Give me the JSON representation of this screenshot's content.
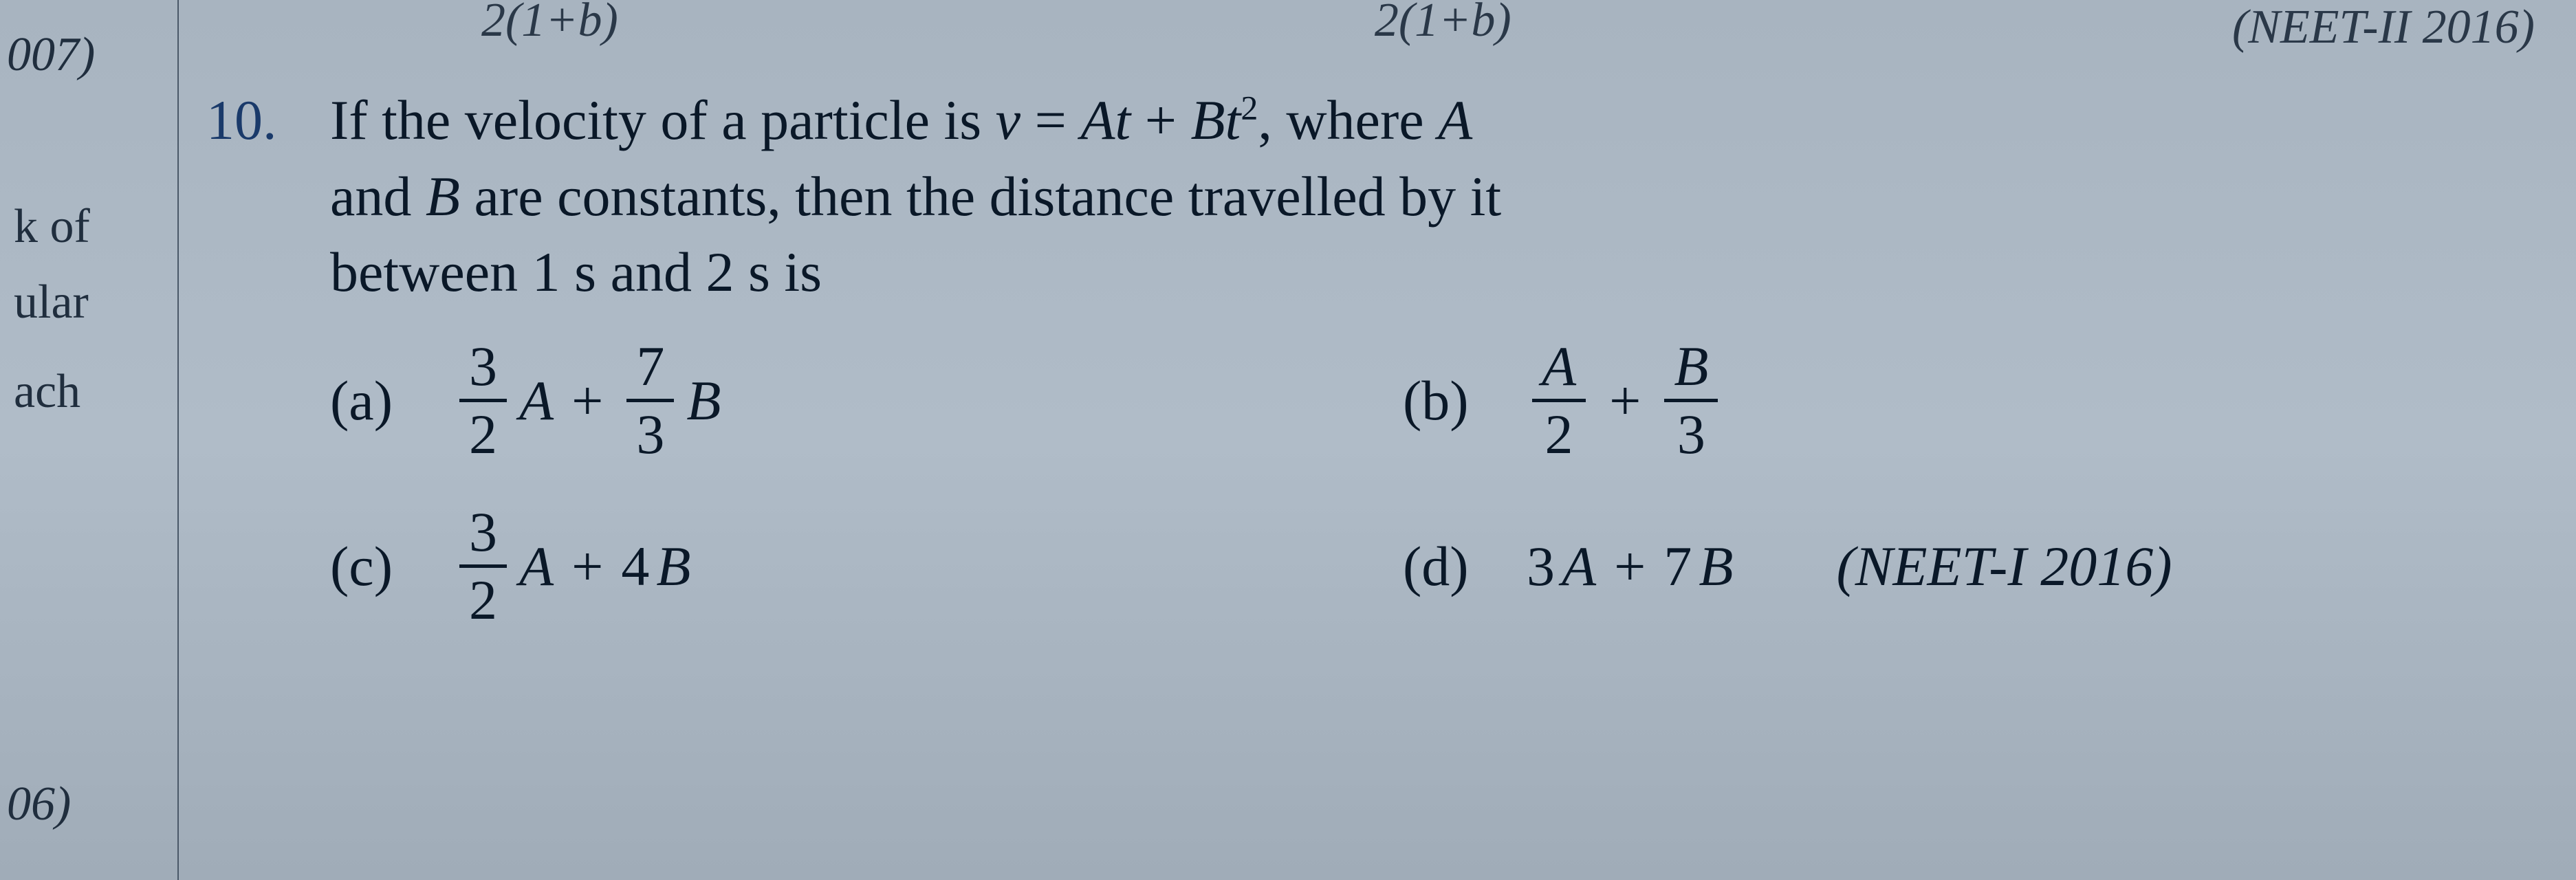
{
  "margin": {
    "n007": "007)",
    "kof": "k of",
    "ular": "ular",
    "ach": "ach",
    "n06": "06)"
  },
  "top": {
    "frag1": "2(1+b)",
    "frag2": "2(1+b)",
    "ref": "(NEET-II 2016)"
  },
  "question": {
    "number": "10.",
    "line1_a": "If the velocity of a particle is ",
    "line1_v": "v",
    "line1_eq": " = ",
    "line1_At": "At",
    "line1_plus": " + ",
    "line1_Bt2_B": "B",
    "line1_Bt2_t": "t",
    "line1_Bt2_sq": "2",
    "line1_b": ",  where ",
    "line1_A": "A",
    "line2_a": "and ",
    "line2_B": "B",
    "line2_b": " are constants, then the distance travelled by it",
    "line3": "between 1 s and 2 s is"
  },
  "options": {
    "a": {
      "label": "(a)",
      "f1_num": "3",
      "f1_den": "2",
      "var1": "A",
      "plus": "+",
      "f2_num": "7",
      "f2_den": "3",
      "var2": "B"
    },
    "b": {
      "label": "(b)",
      "f1_num": "A",
      "f1_den": "2",
      "plus": "+",
      "f2_num": "B",
      "f2_den": "3"
    },
    "c": {
      "label": "(c)",
      "f1_num": "3",
      "f1_den": "2",
      "var1": "A",
      "plus": "+",
      "rest": "4",
      "var2": "B"
    },
    "d": {
      "label": "(d)",
      "expr_3": "3",
      "expr_A": "A",
      "plus": "+",
      "expr_7": "7",
      "expr_B": "B",
      "ref": "(NEET-I 2016)"
    }
  }
}
